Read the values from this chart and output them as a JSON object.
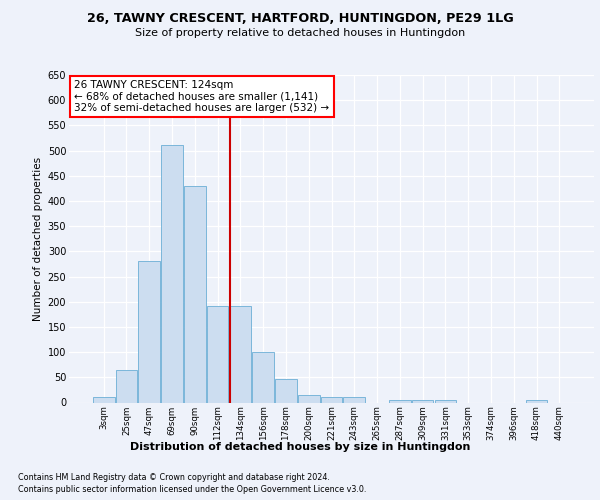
{
  "title1": "26, TAWNY CRESCENT, HARTFORD, HUNTINGDON, PE29 1LG",
  "title2": "Size of property relative to detached houses in Huntingdon",
  "xlabel": "Distribution of detached houses by size in Huntingdon",
  "ylabel": "Number of detached properties",
  "bar_color": "#ccddf0",
  "bar_edge_color": "#6baed6",
  "categories": [
    "3sqm",
    "25sqm",
    "47sqm",
    "69sqm",
    "90sqm",
    "112sqm",
    "134sqm",
    "156sqm",
    "178sqm",
    "200sqm",
    "221sqm",
    "243sqm",
    "265sqm",
    "287sqm",
    "309sqm",
    "331sqm",
    "353sqm",
    "374sqm",
    "396sqm",
    "418sqm",
    "440sqm"
  ],
  "values": [
    10,
    65,
    280,
    512,
    430,
    192,
    192,
    100,
    46,
    15,
    11,
    11,
    0,
    5,
    5,
    4,
    0,
    0,
    0,
    4,
    0
  ],
  "annotation_text": "26 TAWNY CRESCENT: 124sqm\n← 68% of detached houses are smaller (1,141)\n32% of semi-detached houses are larger (532) →",
  "annotation_box_color": "white",
  "annotation_box_edge_color": "red",
  "red_line_color": "#cc0000",
  "ylim": [
    0,
    650
  ],
  "yticks": [
    0,
    50,
    100,
    150,
    200,
    250,
    300,
    350,
    400,
    450,
    500,
    550,
    600,
    650
  ],
  "footer1": "Contains HM Land Registry data © Crown copyright and database right 2024.",
  "footer2": "Contains public sector information licensed under the Open Government Licence v3.0.",
  "bg_color": "#eef2fa",
  "plot_bg_color": "#eef2fa"
}
